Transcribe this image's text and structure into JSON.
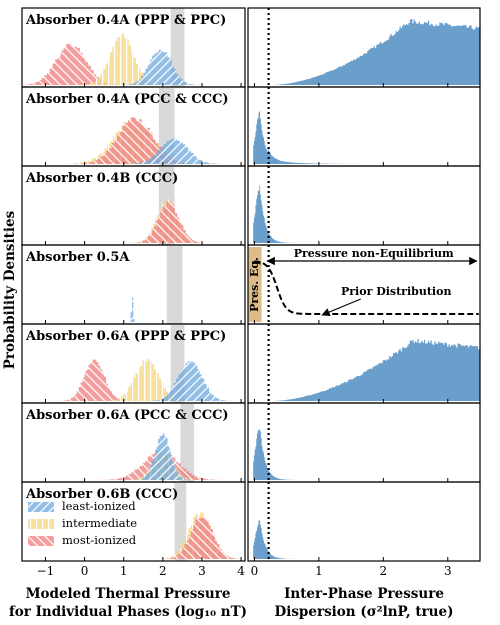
{
  "chart_data": {
    "type": "histogram-grid",
    "ylabel": "Probability Densities",
    "left": {
      "xlabel_line1": "Modeled Thermal Pressure",
      "xlabel_line2": "for Individual Phases (log₁₀ nT)",
      "xlim": [
        -1.6,
        4.1
      ],
      "xticks": [
        -1,
        0,
        1,
        2,
        3,
        4
      ],
      "xtick_labels": [
        "−1",
        "0",
        "1",
        "2",
        "3",
        "4"
      ],
      "legend": [
        {
          "key": "least",
          "label": "least-ionized",
          "color": "#6fa8dc"
        },
        {
          "key": "inter",
          "label": "intermediate",
          "color": "#f5d67a"
        },
        {
          "key": "most",
          "label": "most-ionized",
          "color": "#ee7c7c"
        }
      ]
    },
    "right": {
      "xlabel_line1": "Inter-Phase Pressure",
      "xlabel_line2": "Dispersion (σ²lnP, true)",
      "xlim": [
        -0.1,
        3.5
      ],
      "xticks": [
        0,
        1,
        2,
        3
      ],
      "xtick_labels": [
        "0",
        "1",
        "2",
        "3"
      ],
      "dotted_line_x": 0.22,
      "color": "#6a9fcc"
    },
    "panels": [
      {
        "label": "Absorber 0.4A (PPP & PPC)",
        "band": [
          2.2,
          2.55
        ],
        "phases": [
          {
            "key": "most",
            "mean": -0.35,
            "sd": 0.38,
            "amp": 0.55
          },
          {
            "key": "inter",
            "mean": 0.95,
            "sd": 0.3,
            "amp": 0.68
          },
          {
            "key": "least",
            "mean": 1.95,
            "sd": 0.28,
            "amp": 0.5
          }
        ],
        "right_dist": {
          "kind": "broad",
          "peak_x": 2.4,
          "amp": 0.9
        }
      },
      {
        "label": "Absorber 0.4A (PCC & CCC)",
        "band": [
          1.9,
          2.3
        ],
        "phases": [
          {
            "key": "inter",
            "mean": 1.25,
            "sd": 0.5,
            "amp": 0.6
          },
          {
            "key": "most",
            "mean": 1.3,
            "sd": 0.45,
            "amp": 0.62
          },
          {
            "key": "least",
            "mean": 2.3,
            "sd": 0.35,
            "amp": 0.35
          }
        ],
        "right_dist": {
          "kind": "narrow",
          "peak_x": 0.08,
          "amp": 0.72,
          "tail": 0.06
        }
      },
      {
        "label": "Absorber 0.4B (CCC)",
        "band": [
          1.9,
          2.3
        ],
        "phases": [
          {
            "key": "inter",
            "mean": 2.1,
            "sd": 0.25,
            "amp": 0.6
          },
          {
            "key": "most",
            "mean": 2.15,
            "sd": 0.27,
            "amp": 0.55
          }
        ],
        "right_dist": {
          "kind": "narrow",
          "peak_x": 0.08,
          "amp": 0.78,
          "tail": 0.0
        }
      },
      {
        "label": "Absorber 0.5A",
        "band": [
          2.1,
          2.5
        ],
        "phases": [
          {
            "key": "least",
            "mean": 1.22,
            "sd": 0.02,
            "amp": 0.35
          }
        ],
        "right_dist": {
          "kind": "none"
        },
        "annotations": {
          "pres_eq_label": "Pres. Eq.",
          "non_eq_label": "Pressure non-Equilibrium",
          "prior_label": "Prior Distribution"
        }
      },
      {
        "label": "Absorber 0.6A (PPP & PPC)",
        "band": [
          2.2,
          2.55
        ],
        "phases": [
          {
            "key": "most",
            "mean": 0.25,
            "sd": 0.25,
            "amp": 0.58
          },
          {
            "key": "inter",
            "mean": 1.6,
            "sd": 0.3,
            "amp": 0.58
          },
          {
            "key": "least",
            "mean": 2.7,
            "sd": 0.3,
            "amp": 0.55
          }
        ],
        "right_dist": {
          "kind": "broad",
          "peak_x": 2.45,
          "amp": 0.85
        }
      },
      {
        "label": "Absorber 0.6A (PCC & CCC)",
        "band": [
          2.45,
          2.8
        ],
        "phases": [
          {
            "key": "most",
            "mean": 1.95,
            "sd": 0.45,
            "amp": 0.38
          },
          {
            "key": "inter",
            "mean": 2.0,
            "sd": 0.25,
            "amp": 0.42
          },
          {
            "key": "least",
            "mean": 2.0,
            "sd": 0.2,
            "amp": 0.62
          }
        ],
        "right_dist": {
          "kind": "narrow",
          "peak_x": 0.08,
          "amp": 0.75,
          "tail": 0.0
        }
      },
      {
        "label": "Absorber 0.6B (CCC)",
        "band": [
          2.3,
          2.6
        ],
        "phases": [
          {
            "key": "inter",
            "mean": 2.95,
            "sd": 0.3,
            "amp": 0.62
          },
          {
            "key": "most",
            "mean": 3.0,
            "sd": 0.28,
            "amp": 0.6
          }
        ],
        "right_dist": {
          "kind": "narrow",
          "peak_x": 0.08,
          "amp": 0.55,
          "tail": 0.0
        },
        "show_legend": true
      }
    ]
  }
}
